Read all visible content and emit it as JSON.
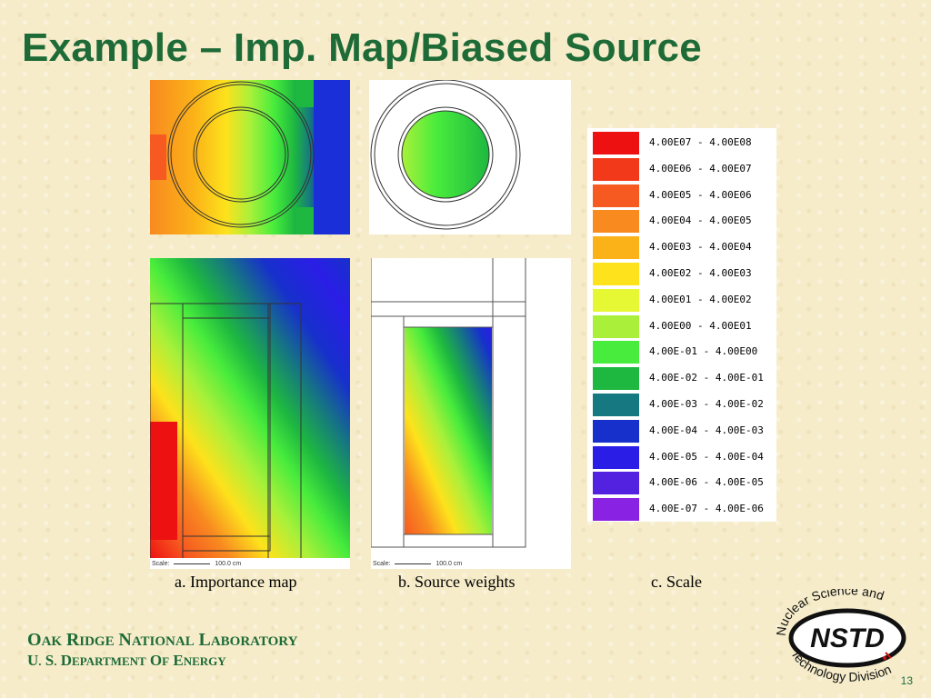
{
  "slide": {
    "title": "Example – Imp. Map/Biased Source",
    "page_number": "13"
  },
  "captions": {
    "a": "a. Importance map",
    "b": "b. Source weights",
    "c": "c. Scale"
  },
  "footer": {
    "line1": "Oak Ridge National Laboratory",
    "line2": "U. S. Department of Energy"
  },
  "logo": {
    "abbrev": "NSTD",
    "top_text": "Nuclear Science and",
    "bottom_text": "Technology Division"
  },
  "scale_bar": {
    "label": "Scale:",
    "value": "100.0 cm"
  },
  "legend": {
    "entries": [
      {
        "label": "4.00E07 - 4.00E08",
        "color": "#ee1111"
      },
      {
        "label": "4.00E06 - 4.00E07",
        "color": "#f23a1a"
      },
      {
        "label": "4.00E05 - 4.00E06",
        "color": "#f65a20"
      },
      {
        "label": "4.00E04 - 4.00E05",
        "color": "#f88a20"
      },
      {
        "label": "4.00E03 - 4.00E04",
        "color": "#fbb218"
      },
      {
        "label": "4.00E02 - 4.00E03",
        "color": "#fde21c"
      },
      {
        "label": "4.00E01 - 4.00E02",
        "color": "#e6f734"
      },
      {
        "label": "4.00E00 - 4.00E01",
        "color": "#aaf03a"
      },
      {
        "label": "4.00E-01 - 4.00E00",
        "color": "#48ec3c"
      },
      {
        "label": "4.00E-02 - 4.00E-01",
        "color": "#1eb840"
      },
      {
        "label": "4.00E-03 - 4.00E-02",
        "color": "#167880"
      },
      {
        "label": "4.00E-04 - 4.00E-03",
        "color": "#1730cc"
      },
      {
        "label": "4.00E-05 - 4.00E-04",
        "color": "#2a1ee6"
      },
      {
        "label": "4.00E-06 - 4.00E-05",
        "color": "#5222e0"
      },
      {
        "label": "4.00E-07 - 4.00E-06",
        "color": "#8a22e4"
      }
    ]
  }
}
